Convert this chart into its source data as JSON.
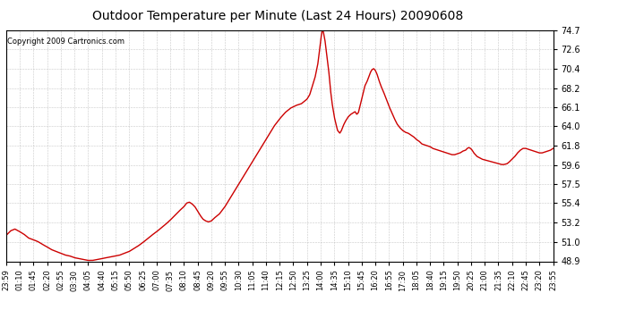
{
  "title": "Outdoor Temperature per Minute (Last 24 Hours) 20090608",
  "copyright_text": "Copyright 2009 Cartronics.com",
  "line_color": "#cc0000",
  "background_color": "#ffffff",
  "plot_bg_color": "#ffffff",
  "grid_color": "#bbbbbb",
  "ylim": [
    48.9,
    74.7
  ],
  "yticks": [
    48.9,
    51.0,
    53.2,
    55.4,
    57.5,
    59.6,
    61.8,
    64.0,
    66.1,
    68.2,
    70.4,
    72.6,
    74.7
  ],
  "xtick_labels": [
    "23:59",
    "01:10",
    "01:45",
    "02:20",
    "02:55",
    "03:30",
    "04:05",
    "04:40",
    "05:15",
    "05:50",
    "06:25",
    "07:00",
    "07:35",
    "08:10",
    "08:45",
    "09:20",
    "09:55",
    "10:30",
    "11:05",
    "11:40",
    "12:15",
    "12:50",
    "13:25",
    "14:00",
    "14:35",
    "15:10",
    "15:45",
    "16:20",
    "16:55",
    "17:30",
    "18:05",
    "18:40",
    "19:15",
    "19:50",
    "20:25",
    "21:00",
    "21:35",
    "22:10",
    "22:45",
    "23:20",
    "23:55"
  ],
  "keypoints": [
    [
      0.0,
      51.8
    ],
    [
      0.008,
      52.3
    ],
    [
      0.016,
      52.5
    ],
    [
      0.025,
      52.2
    ],
    [
      0.033,
      51.9
    ],
    [
      0.041,
      51.5
    ],
    [
      0.05,
      51.3
    ],
    [
      0.058,
      51.1
    ],
    [
      0.066,
      50.8
    ],
    [
      0.075,
      50.5
    ],
    [
      0.083,
      50.2
    ],
    [
      0.091,
      50.0
    ],
    [
      0.1,
      49.8
    ],
    [
      0.108,
      49.6
    ],
    [
      0.116,
      49.5
    ],
    [
      0.125,
      49.3
    ],
    [
      0.133,
      49.2
    ],
    [
      0.141,
      49.1
    ],
    [
      0.15,
      49.0
    ],
    [
      0.158,
      49.0
    ],
    [
      0.166,
      49.1
    ],
    [
      0.175,
      49.2
    ],
    [
      0.183,
      49.3
    ],
    [
      0.191,
      49.4
    ],
    [
      0.2,
      49.5
    ],
    [
      0.208,
      49.6
    ],
    [
      0.216,
      49.8
    ],
    [
      0.225,
      50.0
    ],
    [
      0.233,
      50.3
    ],
    [
      0.241,
      50.6
    ],
    [
      0.25,
      51.0
    ],
    [
      0.258,
      51.4
    ],
    [
      0.266,
      51.8
    ],
    [
      0.275,
      52.2
    ],
    [
      0.283,
      52.6
    ],
    [
      0.291,
      53.0
    ],
    [
      0.3,
      53.5
    ],
    [
      0.308,
      54.0
    ],
    [
      0.316,
      54.5
    ],
    [
      0.325,
      55.0
    ],
    [
      0.33,
      55.4
    ],
    [
      0.335,
      55.5
    ],
    [
      0.34,
      55.3
    ],
    [
      0.345,
      55.0
    ],
    [
      0.35,
      54.5
    ],
    [
      0.355,
      54.0
    ],
    [
      0.36,
      53.6
    ],
    [
      0.365,
      53.4
    ],
    [
      0.37,
      53.3
    ],
    [
      0.375,
      53.4
    ],
    [
      0.38,
      53.7
    ],
    [
      0.39,
      54.2
    ],
    [
      0.4,
      55.0
    ],
    [
      0.41,
      56.0
    ],
    [
      0.42,
      57.0
    ],
    [
      0.43,
      58.0
    ],
    [
      0.44,
      59.0
    ],
    [
      0.45,
      60.0
    ],
    [
      0.46,
      61.0
    ],
    [
      0.47,
      62.0
    ],
    [
      0.48,
      63.0
    ],
    [
      0.49,
      64.0
    ],
    [
      0.5,
      64.8
    ],
    [
      0.51,
      65.5
    ],
    [
      0.52,
      66.0
    ],
    [
      0.53,
      66.3
    ],
    [
      0.54,
      66.5
    ],
    [
      0.55,
      67.0
    ],
    [
      0.555,
      67.5
    ],
    [
      0.56,
      68.5
    ],
    [
      0.565,
      69.5
    ],
    [
      0.57,
      71.0
    ],
    [
      0.573,
      72.5
    ],
    [
      0.576,
      74.0
    ],
    [
      0.578,
      74.7
    ],
    [
      0.58,
      74.5
    ],
    [
      0.583,
      73.5
    ],
    [
      0.586,
      72.0
    ],
    [
      0.59,
      70.0
    ],
    [
      0.593,
      68.0
    ],
    [
      0.596,
      66.5
    ],
    [
      0.6,
      65.0
    ],
    [
      0.603,
      64.2
    ],
    [
      0.606,
      63.5
    ],
    [
      0.61,
      63.2
    ],
    [
      0.613,
      63.5
    ],
    [
      0.616,
      64.0
    ],
    [
      0.62,
      64.5
    ],
    [
      0.625,
      65.0
    ],
    [
      0.63,
      65.3
    ],
    [
      0.635,
      65.5
    ],
    [
      0.638,
      65.6
    ],
    [
      0.641,
      65.3
    ],
    [
      0.644,
      65.5
    ],
    [
      0.648,
      66.5
    ],
    [
      0.652,
      67.5
    ],
    [
      0.656,
      68.5
    ],
    [
      0.66,
      69.0
    ],
    [
      0.663,
      69.5
    ],
    [
      0.666,
      70.0
    ],
    [
      0.669,
      70.3
    ],
    [
      0.672,
      70.4
    ],
    [
      0.675,
      70.2
    ],
    [
      0.678,
      69.8
    ],
    [
      0.681,
      69.2
    ],
    [
      0.685,
      68.5
    ],
    [
      0.69,
      67.8
    ],
    [
      0.695,
      67.0
    ],
    [
      0.7,
      66.2
    ],
    [
      0.705,
      65.5
    ],
    [
      0.71,
      64.8
    ],
    [
      0.715,
      64.2
    ],
    [
      0.72,
      63.8
    ],
    [
      0.725,
      63.5
    ],
    [
      0.73,
      63.3
    ],
    [
      0.735,
      63.2
    ],
    [
      0.74,
      63.0
    ],
    [
      0.745,
      62.8
    ],
    [
      0.75,
      62.5
    ],
    [
      0.755,
      62.3
    ],
    [
      0.76,
      62.0
    ],
    [
      0.765,
      61.9
    ],
    [
      0.77,
      61.8
    ],
    [
      0.775,
      61.7
    ],
    [
      0.78,
      61.5
    ],
    [
      0.785,
      61.4
    ],
    [
      0.79,
      61.3
    ],
    [
      0.795,
      61.2
    ],
    [
      0.8,
      61.1
    ],
    [
      0.805,
      61.0
    ],
    [
      0.81,
      60.9
    ],
    [
      0.815,
      60.8
    ],
    [
      0.82,
      60.8
    ],
    [
      0.825,
      60.9
    ],
    [
      0.83,
      61.0
    ],
    [
      0.835,
      61.2
    ],
    [
      0.84,
      61.3
    ],
    [
      0.843,
      61.5
    ],
    [
      0.846,
      61.6
    ],
    [
      0.849,
      61.5
    ],
    [
      0.852,
      61.3
    ],
    [
      0.855,
      61.0
    ],
    [
      0.858,
      60.8
    ],
    [
      0.861,
      60.6
    ],
    [
      0.864,
      60.5
    ],
    [
      0.87,
      60.3
    ],
    [
      0.876,
      60.2
    ],
    [
      0.882,
      60.1
    ],
    [
      0.888,
      60.0
    ],
    [
      0.894,
      59.9
    ],
    [
      0.9,
      59.8
    ],
    [
      0.906,
      59.7
    ],
    [
      0.91,
      59.7
    ],
    [
      0.916,
      59.8
    ],
    [
      0.92,
      60.0
    ],
    [
      0.925,
      60.3
    ],
    [
      0.93,
      60.6
    ],
    [
      0.935,
      61.0
    ],
    [
      0.94,
      61.3
    ],
    [
      0.945,
      61.5
    ],
    [
      0.95,
      61.5
    ],
    [
      0.955,
      61.4
    ],
    [
      0.96,
      61.3
    ],
    [
      0.965,
      61.2
    ],
    [
      0.97,
      61.1
    ],
    [
      0.975,
      61.0
    ],
    [
      0.98,
      61.0
    ],
    [
      0.985,
      61.1
    ],
    [
      0.99,
      61.2
    ],
    [
      0.995,
      61.3
    ],
    [
      1.0,
      61.5
    ]
  ]
}
